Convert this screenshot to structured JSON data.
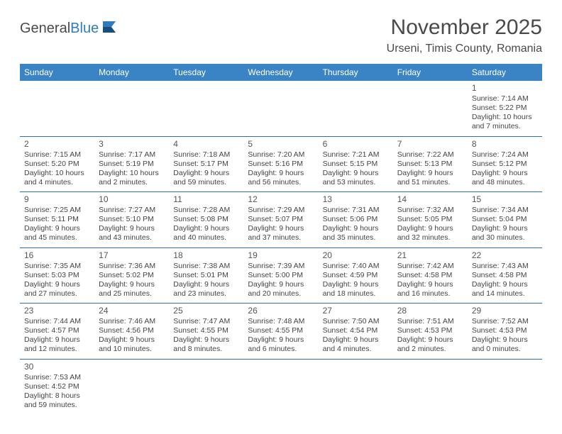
{
  "brand": {
    "name_part1": "General",
    "name_part2": "Blue",
    "logo_color1": "#2f7bbf",
    "logo_color2": "#1a4e7a"
  },
  "header": {
    "month_title": "November 2025",
    "location": "Urseni, Timis County, Romania"
  },
  "styling": {
    "header_bg": "#3a83c4",
    "header_text": "#ffffff",
    "cell_border": "#2f6fa8",
    "text_color": "#444444",
    "title_color": "#4a4a4a"
  },
  "daynames": [
    "Sunday",
    "Monday",
    "Tuesday",
    "Wednesday",
    "Thursday",
    "Friday",
    "Saturday"
  ],
  "weeks": [
    [
      null,
      null,
      null,
      null,
      null,
      null,
      {
        "n": "1",
        "sunrise": "7:14 AM",
        "sunset": "5:22 PM",
        "daylight": "10 hours and 7 minutes."
      }
    ],
    [
      {
        "n": "2",
        "sunrise": "7:15 AM",
        "sunset": "5:20 PM",
        "daylight": "10 hours and 4 minutes."
      },
      {
        "n": "3",
        "sunrise": "7:17 AM",
        "sunset": "5:19 PM",
        "daylight": "10 hours and 2 minutes."
      },
      {
        "n": "4",
        "sunrise": "7:18 AM",
        "sunset": "5:17 PM",
        "daylight": "9 hours and 59 minutes."
      },
      {
        "n": "5",
        "sunrise": "7:20 AM",
        "sunset": "5:16 PM",
        "daylight": "9 hours and 56 minutes."
      },
      {
        "n": "6",
        "sunrise": "7:21 AM",
        "sunset": "5:15 PM",
        "daylight": "9 hours and 53 minutes."
      },
      {
        "n": "7",
        "sunrise": "7:22 AM",
        "sunset": "5:13 PM",
        "daylight": "9 hours and 51 minutes."
      },
      {
        "n": "8",
        "sunrise": "7:24 AM",
        "sunset": "5:12 PM",
        "daylight": "9 hours and 48 minutes."
      }
    ],
    [
      {
        "n": "9",
        "sunrise": "7:25 AM",
        "sunset": "5:11 PM",
        "daylight": "9 hours and 45 minutes."
      },
      {
        "n": "10",
        "sunrise": "7:27 AM",
        "sunset": "5:10 PM",
        "daylight": "9 hours and 43 minutes."
      },
      {
        "n": "11",
        "sunrise": "7:28 AM",
        "sunset": "5:08 PM",
        "daylight": "9 hours and 40 minutes."
      },
      {
        "n": "12",
        "sunrise": "7:29 AM",
        "sunset": "5:07 PM",
        "daylight": "9 hours and 37 minutes."
      },
      {
        "n": "13",
        "sunrise": "7:31 AM",
        "sunset": "5:06 PM",
        "daylight": "9 hours and 35 minutes."
      },
      {
        "n": "14",
        "sunrise": "7:32 AM",
        "sunset": "5:05 PM",
        "daylight": "9 hours and 32 minutes."
      },
      {
        "n": "15",
        "sunrise": "7:34 AM",
        "sunset": "5:04 PM",
        "daylight": "9 hours and 30 minutes."
      }
    ],
    [
      {
        "n": "16",
        "sunrise": "7:35 AM",
        "sunset": "5:03 PM",
        "daylight": "9 hours and 27 minutes."
      },
      {
        "n": "17",
        "sunrise": "7:36 AM",
        "sunset": "5:02 PM",
        "daylight": "9 hours and 25 minutes."
      },
      {
        "n": "18",
        "sunrise": "7:38 AM",
        "sunset": "5:01 PM",
        "daylight": "9 hours and 23 minutes."
      },
      {
        "n": "19",
        "sunrise": "7:39 AM",
        "sunset": "5:00 PM",
        "daylight": "9 hours and 20 minutes."
      },
      {
        "n": "20",
        "sunrise": "7:40 AM",
        "sunset": "4:59 PM",
        "daylight": "9 hours and 18 minutes."
      },
      {
        "n": "21",
        "sunrise": "7:42 AM",
        "sunset": "4:58 PM",
        "daylight": "9 hours and 16 minutes."
      },
      {
        "n": "22",
        "sunrise": "7:43 AM",
        "sunset": "4:58 PM",
        "daylight": "9 hours and 14 minutes."
      }
    ],
    [
      {
        "n": "23",
        "sunrise": "7:44 AM",
        "sunset": "4:57 PM",
        "daylight": "9 hours and 12 minutes."
      },
      {
        "n": "24",
        "sunrise": "7:46 AM",
        "sunset": "4:56 PM",
        "daylight": "9 hours and 10 minutes."
      },
      {
        "n": "25",
        "sunrise": "7:47 AM",
        "sunset": "4:55 PM",
        "daylight": "9 hours and 8 minutes."
      },
      {
        "n": "26",
        "sunrise": "7:48 AM",
        "sunset": "4:55 PM",
        "daylight": "9 hours and 6 minutes."
      },
      {
        "n": "27",
        "sunrise": "7:50 AM",
        "sunset": "4:54 PM",
        "daylight": "9 hours and 4 minutes."
      },
      {
        "n": "28",
        "sunrise": "7:51 AM",
        "sunset": "4:53 PM",
        "daylight": "9 hours and 2 minutes."
      },
      {
        "n": "29",
        "sunrise": "7:52 AM",
        "sunset": "4:53 PM",
        "daylight": "9 hours and 0 minutes."
      }
    ],
    [
      {
        "n": "30",
        "sunrise": "7:53 AM",
        "sunset": "4:52 PM",
        "daylight": "8 hours and 59 minutes."
      },
      null,
      null,
      null,
      null,
      null,
      null
    ]
  ],
  "labels": {
    "sunrise": "Sunrise: ",
    "sunset": "Sunset: ",
    "daylight": "Daylight: "
  }
}
